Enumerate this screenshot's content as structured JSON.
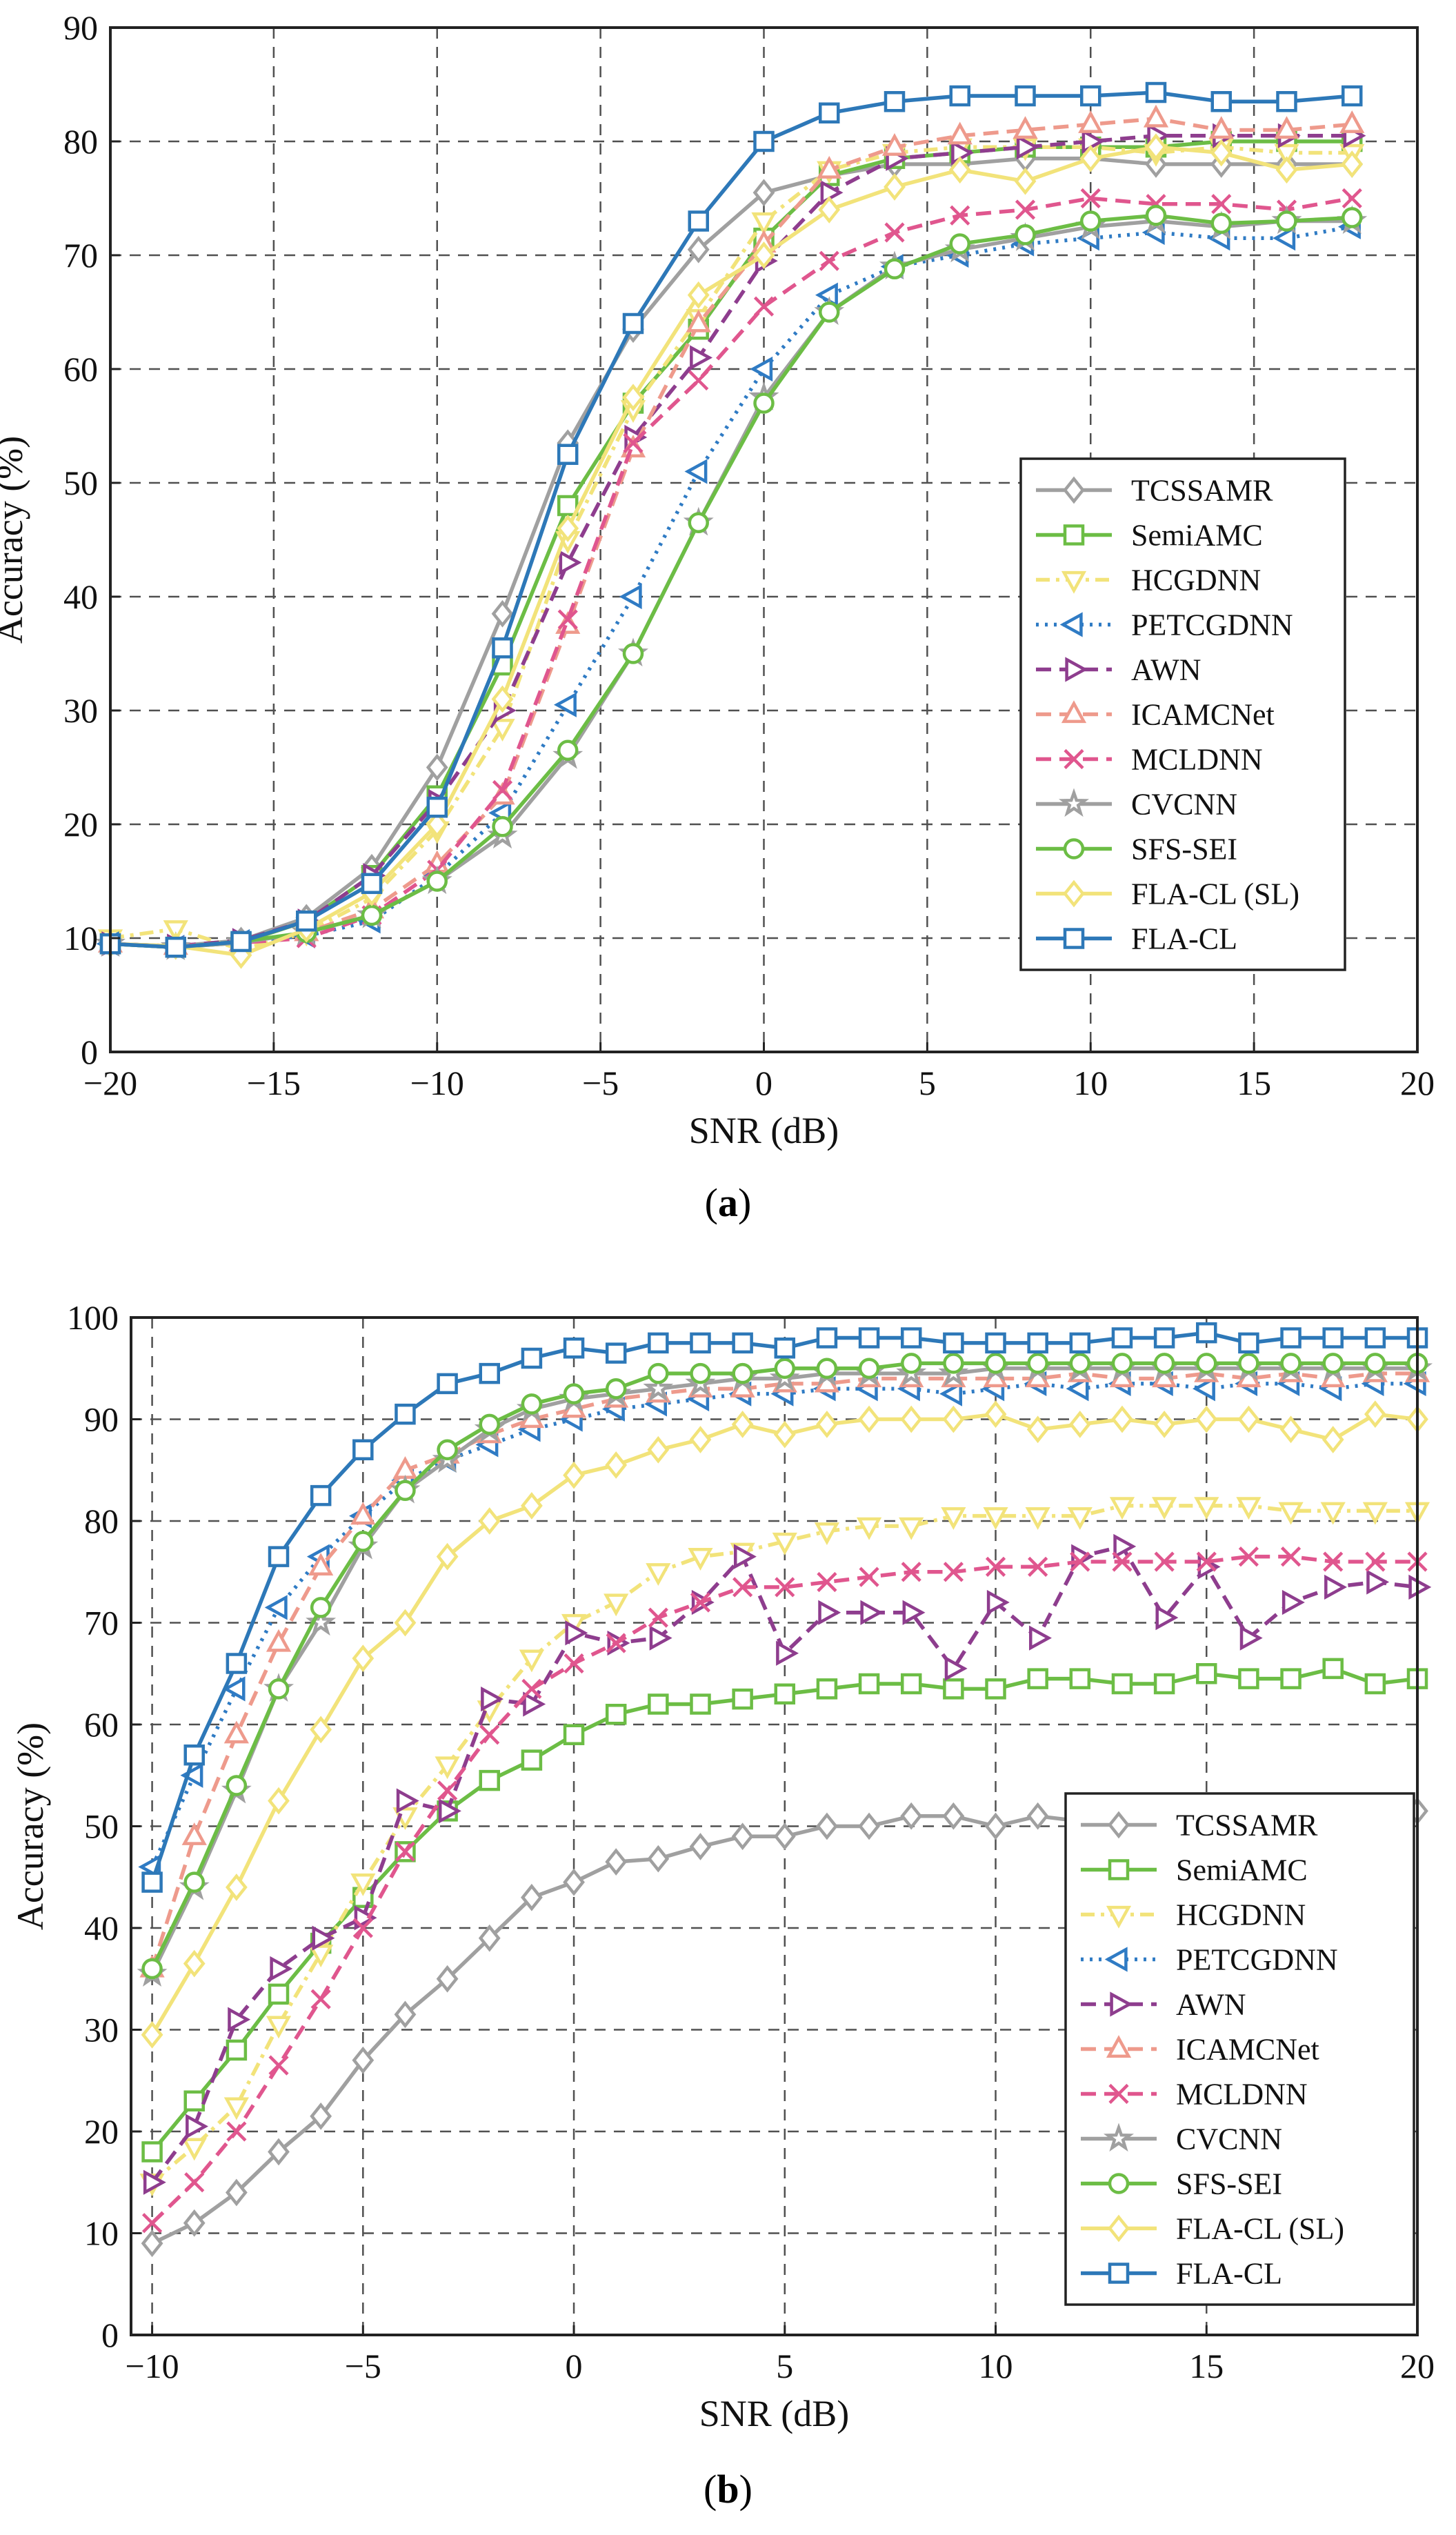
{
  "chart_data": [
    {
      "type": "line",
      "panel_label": "a",
      "xlabel": "SNR (dB)",
      "ylabel": "Accuracy (%)",
      "xlim": [
        -20,
        20
      ],
      "ylim": [
        0,
        90
      ],
      "xticks": [
        -20,
        -15,
        -10,
        -5,
        0,
        5,
        10,
        15,
        20
      ],
      "xtick_labels": [
        "−20",
        "−15",
        "−10",
        "−5",
        "0",
        "5",
        "10",
        "15",
        "20"
      ],
      "yticks": [
        0,
        10,
        20,
        30,
        40,
        50,
        60,
        70,
        80,
        90
      ],
      "ytick_labels": [
        "0",
        "10",
        "20",
        "30",
        "40",
        "50",
        "60",
        "70",
        "80",
        "90"
      ],
      "grid": true,
      "legend_position": "right, middle",
      "x": [
        -20,
        -18,
        -16,
        -14,
        -12,
        -10,
        -8,
        -6,
        -4,
        -2,
        0,
        2,
        4,
        6,
        8,
        10,
        12,
        14,
        16,
        18
      ],
      "series": [
        {
          "name": "TCSSAMR",
          "color": "#a0a0a0",
          "dash": "solid",
          "marker": "diamond",
          "values": [
            9.5,
            9.3,
            9.8,
            11.8,
            16.2,
            25.0,
            38.5,
            53.5,
            63.5,
            70.5,
            75.5,
            77.0,
            78.0,
            78.0,
            78.5,
            78.5,
            78.0,
            78.0,
            78.0,
            78.0
          ]
        },
        {
          "name": "SemiAMC",
          "color": "#6cbd45",
          "dash": "solid",
          "marker": "square",
          "values": [
            9.5,
            9.2,
            9.6,
            11.5,
            15.5,
            22.5,
            34.0,
            48.0,
            57.0,
            63.5,
            71.5,
            77.0,
            78.5,
            79.0,
            79.5,
            79.5,
            79.5,
            80.0,
            80.0,
            80.0
          ]
        },
        {
          "name": "HCGDNN",
          "color": "#f2e37a",
          "dash": "dashdot",
          "marker": "triangle-down",
          "values": [
            10.0,
            10.8,
            9.0,
            10.5,
            13.5,
            19.5,
            28.5,
            45.0,
            56.5,
            64.5,
            73.0,
            77.5,
            79.0,
            79.5,
            79.5,
            79.5,
            79.0,
            79.5,
            79.0,
            79.0
          ]
        },
        {
          "name": "PETCGDNN",
          "color": "#2f7bc4",
          "dash": "dotted",
          "marker": "triangle-left",
          "values": [
            9.5,
            9.2,
            9.7,
            10.2,
            11.5,
            15.5,
            21.0,
            30.5,
            40.0,
            51.0,
            60.0,
            66.5,
            69.0,
            70.0,
            71.0,
            71.5,
            72.0,
            71.5,
            71.5,
            72.5
          ]
        },
        {
          "name": "AWN",
          "color": "#8e3d8e",
          "dash": "dashed",
          "marker": "triangle-right",
          "values": [
            9.5,
            9.3,
            9.8,
            11.5,
            15.5,
            22.0,
            30.0,
            43.0,
            54.0,
            61.0,
            69.5,
            75.5,
            78.5,
            79.0,
            79.5,
            80.0,
            80.5,
            80.5,
            80.5,
            80.5
          ]
        },
        {
          "name": "ICAMCNet",
          "color": "#ee9a8c",
          "dash": "dashed",
          "marker": "triangle-up",
          "values": [
            9.5,
            9.3,
            9.6,
            10.5,
            12.5,
            16.5,
            22.5,
            37.5,
            53.0,
            64.0,
            71.0,
            77.5,
            79.5,
            80.5,
            81.0,
            81.5,
            82.0,
            81.0,
            81.0,
            81.5
          ]
        },
        {
          "name": "MCLDNN",
          "color": "#e0568e",
          "dash": "dashed",
          "marker": "x",
          "values": [
            9.5,
            9.3,
            9.6,
            10.0,
            12.0,
            16.0,
            23.0,
            38.0,
            53.5,
            59.0,
            65.5,
            69.5,
            72.0,
            73.5,
            74.0,
            75.0,
            74.5,
            74.5,
            74.0,
            75.0
          ]
        },
        {
          "name": "CVCNN",
          "color": "#a0a0a0",
          "dash": "solid",
          "marker": "star",
          "values": [
            9.5,
            9.2,
            9.6,
            10.5,
            12.0,
            15.0,
            19.0,
            26.0,
            35.0,
            46.5,
            57.5,
            65.0,
            69.0,
            70.5,
            71.5,
            72.5,
            73.0,
            72.5,
            73.0,
            73.0
          ]
        },
        {
          "name": "SFS-SEI",
          "color": "#6cbd45",
          "dash": "solid",
          "marker": "circle",
          "values": [
            9.5,
            9.2,
            9.7,
            10.5,
            12.0,
            15.0,
            19.8,
            26.5,
            35.0,
            46.5,
            57.0,
            65.0,
            68.8,
            71.0,
            71.8,
            73.0,
            73.5,
            72.8,
            73.0,
            73.3
          ]
        },
        {
          "name": "FLA-CL (SL)",
          "color": "#f2e37a",
          "dash": "solid",
          "marker": "diamond",
          "values": [
            9.5,
            9.3,
            8.5,
            10.8,
            14.0,
            20.0,
            31.0,
            46.0,
            57.5,
            66.5,
            70.0,
            74.0,
            76.0,
            77.5,
            76.5,
            78.5,
            79.5,
            79.0,
            77.5,
            78.0
          ]
        },
        {
          "name": "FLA-CL",
          "color": "#2d78b8",
          "dash": "solid",
          "marker": "square",
          "values": [
            9.5,
            9.2,
            9.7,
            11.5,
            14.8,
            21.5,
            35.5,
            52.5,
            64.0,
            73.0,
            80.0,
            82.5,
            83.5,
            84.0,
            84.0,
            84.0,
            84.3,
            83.5,
            83.5,
            84.0
          ]
        }
      ]
    },
    {
      "type": "line",
      "panel_label": "b",
      "xlabel": "SNR (dB)",
      "ylabel": "Accuracy (%)",
      "xlim": [
        -10.5,
        20
      ],
      "ylim": [
        0,
        100
      ],
      "xticks": [
        -10,
        -5,
        0,
        5,
        10,
        15,
        20
      ],
      "xtick_labels": [
        "−10",
        "−5",
        "0",
        "5",
        "10",
        "15",
        "20"
      ],
      "yticks": [
        0,
        10,
        20,
        30,
        40,
        50,
        60,
        70,
        80,
        90,
        100
      ],
      "ytick_labels": [
        "0",
        "10",
        "20",
        "30",
        "40",
        "50",
        "60",
        "70",
        "80",
        "90",
        "100"
      ],
      "grid": true,
      "legend_position": "bottom-right",
      "x": [
        -10,
        -9,
        -8,
        -7,
        -6,
        -5,
        -4,
        -3,
        -2,
        -1,
        0,
        1,
        2,
        3,
        4,
        5,
        6,
        7,
        8,
        9,
        10,
        11,
        12,
        13,
        14,
        15,
        16,
        17,
        18,
        19,
        20
      ],
      "series": [
        {
          "name": "TCSSAMR",
          "color": "#a0a0a0",
          "dash": "solid",
          "marker": "diamond",
          "values": [
            9.0,
            11.0,
            14.0,
            18.0,
            21.5,
            27.0,
            31.5,
            35.0,
            39.0,
            43.0,
            44.5,
            46.5,
            46.8,
            48.0,
            49.0,
            49.0,
            50.0,
            50.0,
            51.0,
            51.0,
            50.0,
            51.0,
            50.5,
            50.5,
            51.0,
            51.0,
            50.5,
            51.0,
            50.5,
            50.5,
            51.5
          ]
        },
        {
          "name": "SemiAMC",
          "color": "#6cbd45",
          "dash": "solid",
          "marker": "square",
          "values": [
            18.0,
            23.0,
            28.0,
            33.5,
            38.5,
            43.0,
            47.5,
            51.5,
            54.5,
            56.5,
            59.0,
            61.0,
            62.0,
            62.0,
            62.5,
            63.0,
            63.5,
            64.0,
            64.0,
            63.5,
            63.5,
            64.5,
            64.5,
            64.0,
            64.0,
            65.0,
            64.5,
            64.5,
            65.5,
            64.0,
            64.5
          ]
        },
        {
          "name": "HCGDNN",
          "color": "#f2e37a",
          "dash": "dashdot",
          "marker": "triangle-down",
          "values": [
            15.0,
            18.5,
            22.5,
            30.5,
            37.5,
            44.5,
            51.0,
            56.0,
            61.5,
            66.5,
            70.0,
            72.0,
            75.0,
            76.5,
            77.0,
            78.0,
            79.0,
            79.5,
            79.5,
            80.5,
            80.5,
            80.5,
            80.5,
            81.5,
            81.5,
            81.5,
            81.5,
            81.0,
            81.0,
            81.0,
            81.0
          ]
        },
        {
          "name": "PETCGDNN",
          "color": "#2f7bc4",
          "dash": "dotted",
          "marker": "triangle-left",
          "values": [
            46.0,
            55.0,
            63.5,
            71.5,
            76.5,
            80.5,
            84.0,
            86.0,
            87.5,
            89.0,
            90.0,
            91.0,
            91.5,
            92.0,
            92.5,
            92.5,
            93.0,
            93.0,
            93.0,
            92.5,
            93.0,
            93.5,
            93.0,
            93.5,
            93.5,
            93.0,
            93.5,
            93.5,
            93.0,
            93.5,
            93.5
          ]
        },
        {
          "name": "AWN",
          "color": "#8e3d8e",
          "dash": "dashed",
          "marker": "triangle-right",
          "values": [
            15.0,
            20.5,
            31.0,
            36.0,
            39.0,
            41.0,
            52.5,
            51.5,
            62.5,
            62.0,
            69.0,
            68.0,
            68.5,
            72.0,
            76.5,
            67.0,
            71.0,
            71.0,
            71.0,
            65.5,
            72.0,
            68.5,
            76.5,
            77.5,
            70.5,
            75.5,
            68.5,
            72.0,
            73.5,
            74.0,
            73.5
          ]
        },
        {
          "name": "ICAMCNet",
          "color": "#ee9a8c",
          "dash": "dashed",
          "marker": "triangle-up",
          "values": [
            36.0,
            49.0,
            59.0,
            68.0,
            75.5,
            80.5,
            85.0,
            86.5,
            88.5,
            90.0,
            91.0,
            92.0,
            92.5,
            93.0,
            93.0,
            93.5,
            93.5,
            94.0,
            94.0,
            94.0,
            94.0,
            94.0,
            94.5,
            94.0,
            94.0,
            94.5,
            94.0,
            94.5,
            94.0,
            94.5,
            94.5
          ]
        },
        {
          "name": "MCLDNN",
          "color": "#e0568e",
          "dash": "dashed",
          "marker": "x",
          "values": [
            11.0,
            15.0,
            20.0,
            26.5,
            33.0,
            40.0,
            47.5,
            53.5,
            59.0,
            63.5,
            66.0,
            68.0,
            70.5,
            72.0,
            73.5,
            73.5,
            74.0,
            74.5,
            75.0,
            75.0,
            75.5,
            75.5,
            76.0,
            76.0,
            76.0,
            76.0,
            76.5,
            76.5,
            76.0,
            76.0,
            76.0
          ]
        },
        {
          "name": "CVCNN",
          "color": "#a0a0a0",
          "dash": "solid",
          "marker": "star",
          "values": [
            35.5,
            44.0,
            53.5,
            63.5,
            70.0,
            77.5,
            83.0,
            86.0,
            89.0,
            91.0,
            92.0,
            92.5,
            93.0,
            93.5,
            94.0,
            94.0,
            94.5,
            94.5,
            94.5,
            94.5,
            95.0,
            95.0,
            95.0,
            95.0,
            95.0,
            95.0,
            95.0,
            95.0,
            95.0,
            95.0,
            95.0
          ]
        },
        {
          "name": "SFS-SEI",
          "color": "#6cbd45",
          "dash": "solid",
          "marker": "circle",
          "values": [
            36.0,
            44.5,
            54.0,
            63.5,
            71.5,
            78.0,
            83.0,
            87.0,
            89.5,
            91.5,
            92.5,
            93.0,
            94.5,
            94.5,
            94.5,
            95.0,
            95.0,
            95.0,
            95.5,
            95.5,
            95.5,
            95.5,
            95.5,
            95.5,
            95.5,
            95.5,
            95.5,
            95.5,
            95.5,
            95.5,
            95.5
          ]
        },
        {
          "name": "FLA-CL (SL)",
          "color": "#f2e37a",
          "dash": "solid",
          "marker": "diamond",
          "values": [
            29.5,
            36.5,
            44.0,
            52.5,
            59.5,
            66.5,
            70.0,
            76.5,
            80.0,
            81.5,
            84.5,
            85.5,
            87.0,
            88.0,
            89.5,
            88.5,
            89.5,
            90.0,
            90.0,
            90.0,
            90.5,
            89.0,
            89.5,
            90.0,
            89.5,
            90.0,
            90.0,
            89.0,
            88.0,
            90.5,
            90.0
          ]
        },
        {
          "name": "FLA-CL",
          "color": "#2d78b8",
          "dash": "solid",
          "marker": "square",
          "values": [
            44.5,
            57.0,
            66.0,
            76.5,
            82.5,
            87.0,
            90.5,
            93.5,
            94.5,
            96.0,
            97.0,
            96.5,
            97.5,
            97.5,
            97.5,
            97.0,
            98.0,
            98.0,
            98.0,
            97.5,
            97.5,
            97.5,
            97.5,
            98.0,
            98.0,
            98.5,
            97.5,
            98.0,
            98.0,
            98.0,
            98.0
          ]
        }
      ]
    }
  ]
}
